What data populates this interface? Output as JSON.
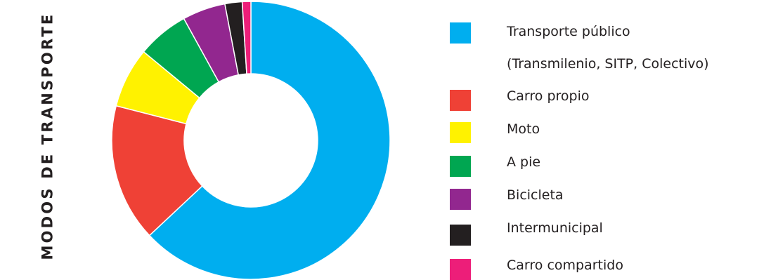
{
  "chart_data": {
    "type": "pie",
    "variant": "donut",
    "title": "",
    "ylabel": "MODOS DE TRANSPORTE",
    "legend_position": "right",
    "slices": [
      {
        "label": "Transporte público",
        "label_line2": "(Transmilenio, SITP, Colectivo)",
        "value": 63.0,
        "color": "#00aeef"
      },
      {
        "label": "Carro propio",
        "value": 16.0,
        "color": "#ef4136"
      },
      {
        "label": "Moto",
        "value": 7.0,
        "color": "#fff200"
      },
      {
        "label": "A pie",
        "value": 6.0,
        "color": "#00a651"
      },
      {
        "label": "Bicicleta",
        "value": 5.0,
        "color": "#92278f"
      },
      {
        "label": "Intermunicipal",
        "value": 2.0,
        "color": "#231f20"
      },
      {
        "label": "Carro compartido",
        "value": 1.0,
        "color": "#ed1e79"
      }
    ]
  }
}
